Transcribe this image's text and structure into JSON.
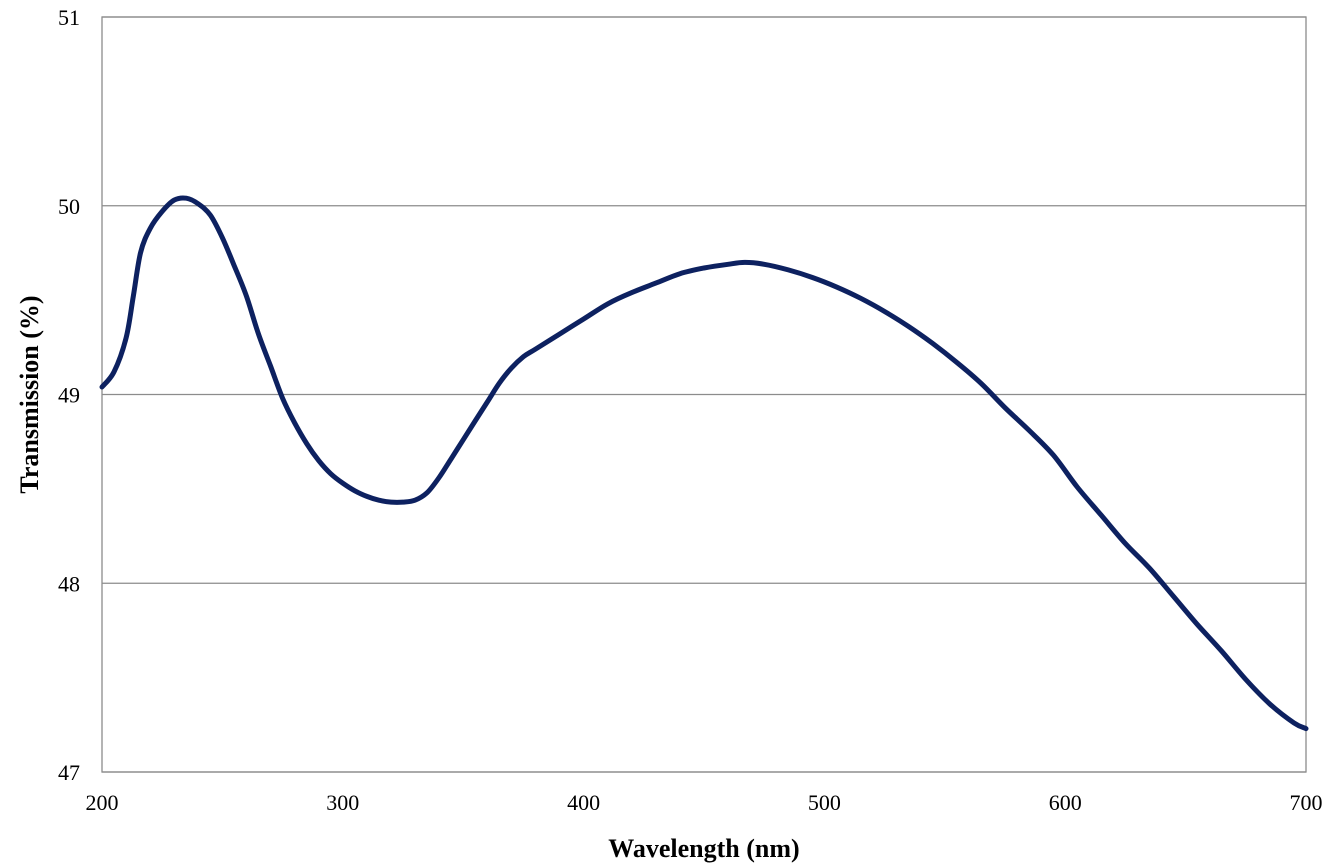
{
  "chart_data": {
    "type": "line",
    "title": "",
    "xlabel": "Wavelength (nm)",
    "ylabel": "Transmission (%)",
    "xlim": [
      200,
      700
    ],
    "ylim": [
      47,
      51
    ],
    "x_ticks": [
      200,
      300,
      400,
      500,
      600,
      700
    ],
    "y_ticks": [
      47,
      48,
      49,
      50,
      51
    ],
    "grid": "horizontal",
    "legend": "none",
    "line_color": "#0d2160",
    "series": [
      {
        "points": [
          [
            200,
            49.04
          ],
          [
            205,
            49.12
          ],
          [
            210,
            49.3
          ],
          [
            213,
            49.52
          ],
          [
            216,
            49.75
          ],
          [
            220,
            49.88
          ],
          [
            225,
            49.97
          ],
          [
            230,
            50.03
          ],
          [
            235,
            50.04
          ],
          [
            240,
            50.01
          ],
          [
            245,
            49.95
          ],
          [
            250,
            49.83
          ],
          [
            255,
            49.68
          ],
          [
            260,
            49.52
          ],
          [
            265,
            49.32
          ],
          [
            270,
            49.15
          ],
          [
            275,
            48.98
          ],
          [
            280,
            48.85
          ],
          [
            285,
            48.74
          ],
          [
            290,
            48.65
          ],
          [
            295,
            48.58
          ],
          [
            300,
            48.53
          ],
          [
            305,
            48.49
          ],
          [
            310,
            48.46
          ],
          [
            315,
            48.44
          ],
          [
            320,
            48.43
          ],
          [
            325,
            48.43
          ],
          [
            330,
            48.44
          ],
          [
            335,
            48.48
          ],
          [
            340,
            48.56
          ],
          [
            345,
            48.66
          ],
          [
            350,
            48.76
          ],
          [
            355,
            48.86
          ],
          [
            360,
            48.96
          ],
          [
            365,
            49.06
          ],
          [
            370,
            49.14
          ],
          [
            375,
            49.2
          ],
          [
            380,
            49.24
          ],
          [
            390,
            49.32
          ],
          [
            400,
            49.4
          ],
          [
            410,
            49.48
          ],
          [
            420,
            49.54
          ],
          [
            430,
            49.59
          ],
          [
            440,
            49.64
          ],
          [
            450,
            49.67
          ],
          [
            460,
            49.69
          ],
          [
            467,
            49.7
          ],
          [
            475,
            49.69
          ],
          [
            485,
            49.66
          ],
          [
            495,
            49.62
          ],
          [
            505,
            49.57
          ],
          [
            515,
            49.51
          ],
          [
            525,
            49.44
          ],
          [
            535,
            49.36
          ],
          [
            545,
            49.27
          ],
          [
            555,
            49.17
          ],
          [
            565,
            49.06
          ],
          [
            575,
            48.93
          ],
          [
            585,
            48.81
          ],
          [
            595,
            48.68
          ],
          [
            605,
            48.51
          ],
          [
            615,
            48.36
          ],
          [
            625,
            48.21
          ],
          [
            635,
            48.08
          ],
          [
            645,
            47.93
          ],
          [
            655,
            47.78
          ],
          [
            665,
            47.64
          ],
          [
            675,
            47.49
          ],
          [
            685,
            47.36
          ],
          [
            695,
            47.26
          ],
          [
            700,
            47.23
          ]
        ]
      }
    ]
  }
}
